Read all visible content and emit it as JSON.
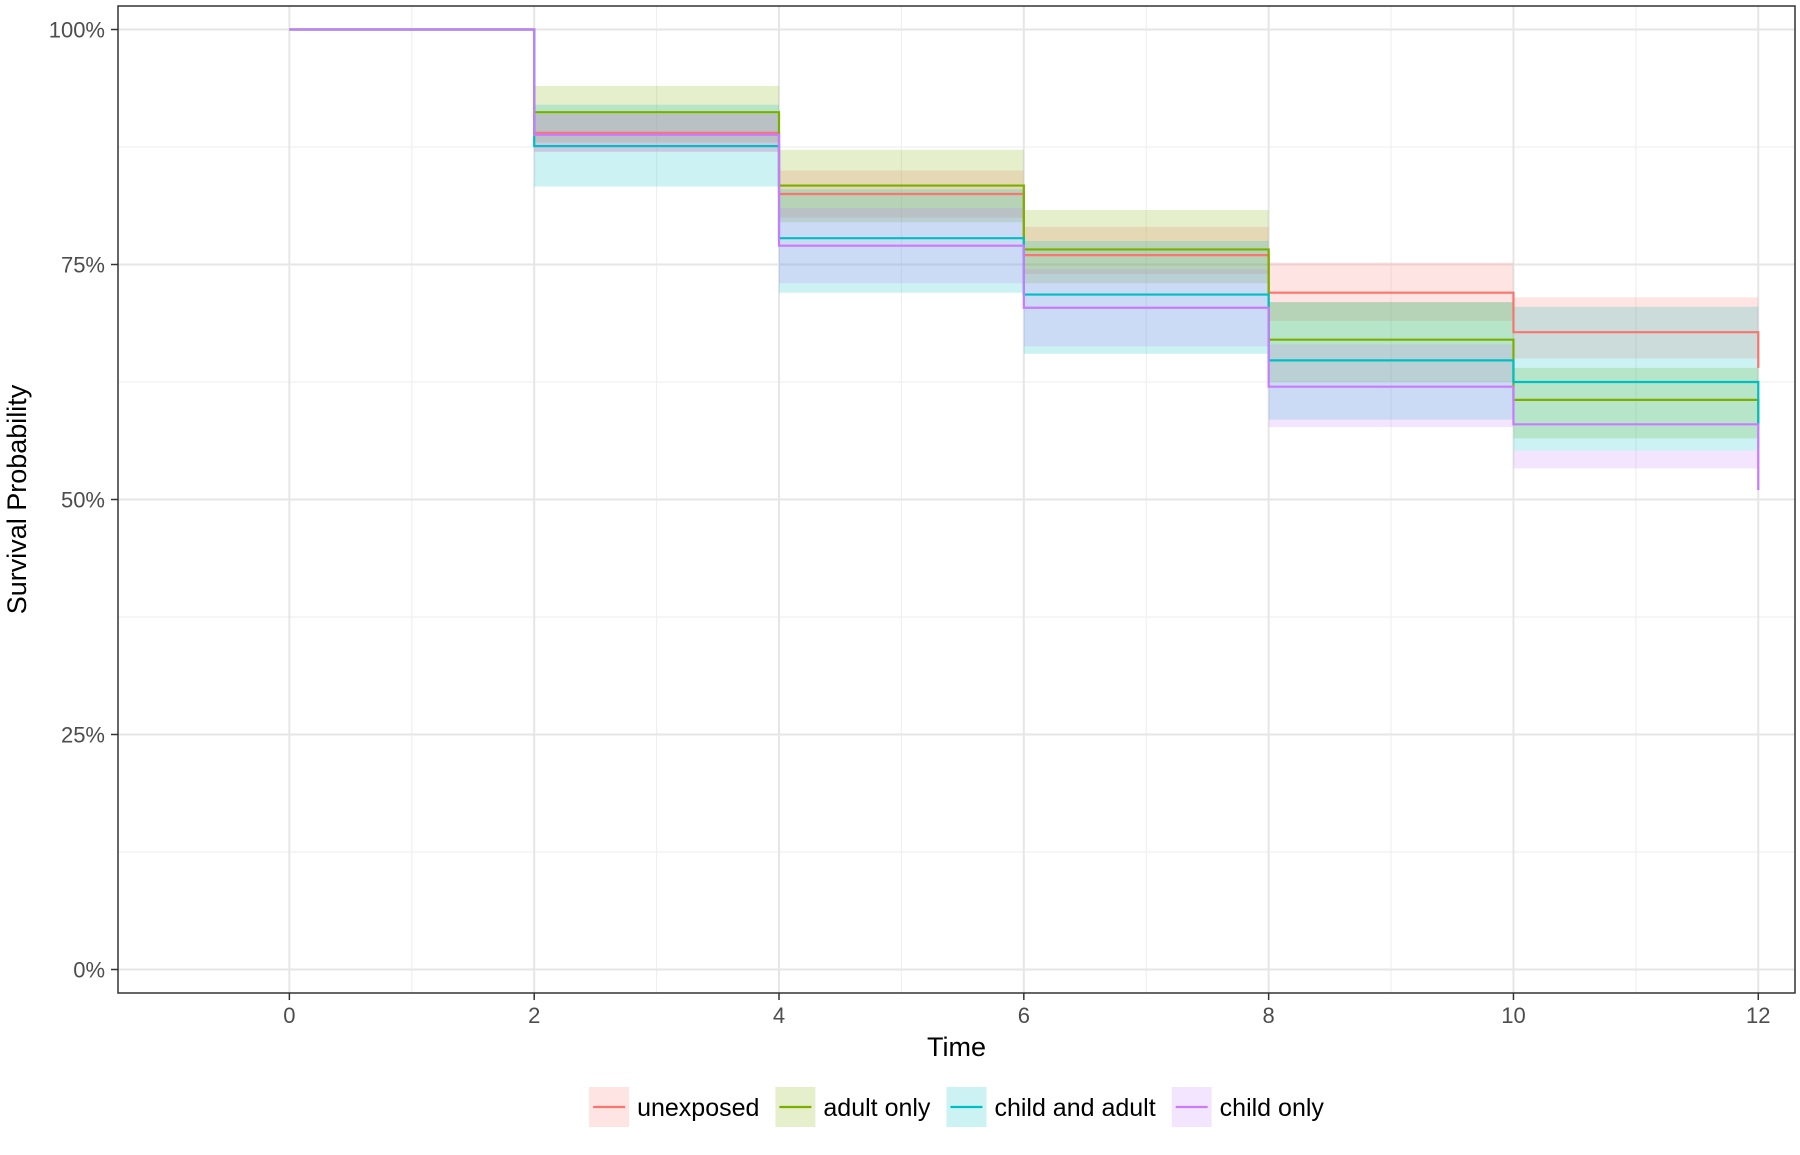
{
  "chart_data": {
    "type": "line",
    "subtype": "kaplan-meier step with confidence bands",
    "title": "",
    "xlabel": "Time",
    "ylabel": "Survival Probability",
    "xlim": [
      -1.4,
      12.3
    ],
    "ylim": [
      -0.025,
      1.025
    ],
    "x_ticks": [
      0,
      2,
      4,
      6,
      8,
      10,
      12
    ],
    "x_tick_labels": [
      "0",
      "2",
      "4",
      "6",
      "8",
      "10",
      "12"
    ],
    "y_ticks": [
      0,
      0.25,
      0.5,
      0.75,
      1.0
    ],
    "y_tick_labels": [
      "0%",
      "25%",
      "50%",
      "75%",
      "100%"
    ],
    "grid": true,
    "legend_position": "bottom",
    "x": [
      0,
      2,
      4,
      6,
      8,
      10,
      12
    ],
    "series": [
      {
        "name": "unexposed",
        "color": "#F8766D",
        "values": [
          1.0,
          0.89,
          0.825,
          0.76,
          0.72,
          0.678,
          0.64
        ],
        "lower": [
          1.0,
          0.87,
          0.8,
          0.74,
          0.69,
          0.65,
          0.61
        ],
        "upper": [
          1.0,
          0.91,
          0.85,
          0.79,
          0.752,
          0.715,
          0.67
        ]
      },
      {
        "name": "adult only",
        "color": "#7CAE00",
        "values": [
          1.0,
          0.912,
          0.834,
          0.766,
          0.67,
          0.606,
          0.58
        ],
        "lower": [
          1.0,
          0.88,
          0.795,
          0.73,
          0.625,
          0.565,
          0.54
        ],
        "upper": [
          1.0,
          0.94,
          0.872,
          0.808,
          0.71,
          0.64,
          0.61
        ]
      },
      {
        "name": "child and adult",
        "color": "#00BFC4",
        "values": [
          1.0,
          0.876,
          0.778,
          0.718,
          0.648,
          0.625,
          0.58
        ],
        "lower": [
          1.0,
          0.833,
          0.72,
          0.655,
          0.585,
          0.552,
          0.51
        ],
        "upper": [
          1.0,
          0.92,
          0.83,
          0.775,
          0.71,
          0.705,
          0.66
        ]
      },
      {
        "name": "child only",
        "color": "#C77CFF",
        "values": [
          1.0,
          0.888,
          0.77,
          0.704,
          0.62,
          0.58,
          0.51
        ],
        "lower": [
          1.0,
          0.87,
          0.73,
          0.663,
          0.577,
          0.533,
          0.48
        ],
        "upper": [
          1.0,
          0.91,
          0.81,
          0.745,
          0.665,
          0.552,
          0.55
        ]
      }
    ]
  }
}
